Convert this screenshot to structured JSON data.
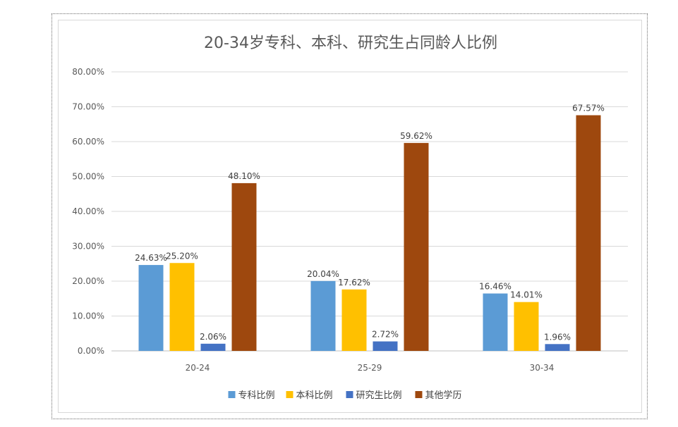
{
  "chart_data": {
    "type": "bar",
    "title": "20-34岁专科、本科、研究生占同龄人比例",
    "categories": [
      "20-24",
      "25-29",
      "30-34"
    ],
    "series": [
      {
        "name": "专科比例",
        "values": [
          24.63,
          20.04,
          16.46
        ],
        "labels": [
          "24.63%",
          "20.04%",
          "16.46%"
        ],
        "color": "#5b9bd5"
      },
      {
        "name": "本科比例",
        "values": [
          25.2,
          17.62,
          14.01
        ],
        "labels": [
          "25.20%",
          "17.62%",
          "14.01%"
        ],
        "color": "#ffc000"
      },
      {
        "name": "研究生比例",
        "values": [
          2.06,
          2.72,
          1.96
        ],
        "labels": [
          "2.06%",
          "2.72%",
          "1.96%"
        ],
        "color": "#4472c4"
      },
      {
        "name": "其他学历",
        "values": [
          48.1,
          59.62,
          67.57
        ],
        "labels": [
          "48.10%",
          "59.62%",
          "67.57%"
        ],
        "color": "#9e480e"
      }
    ],
    "ylim": [
      0,
      80
    ],
    "yticks": [
      0,
      10,
      20,
      30,
      40,
      50,
      60,
      70,
      80
    ],
    "ytick_labels": [
      "0.00%",
      "10.00%",
      "20.00%",
      "30.00%",
      "40.00%",
      "50.00%",
      "60.00%",
      "70.00%",
      "80.00%"
    ],
    "grid": true,
    "legend": "bottom",
    "colors": {
      "gridline": "#d9d9d9",
      "axis": "#bfbfbf"
    }
  }
}
